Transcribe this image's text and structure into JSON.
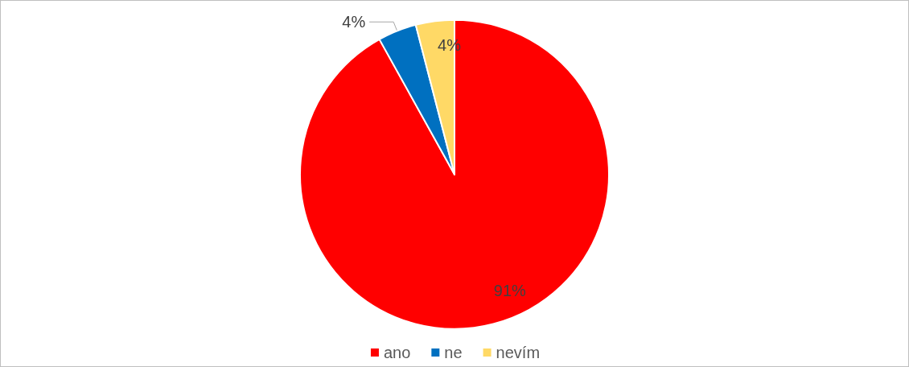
{
  "chart_data": {
    "type": "pie",
    "categories": [
      "ano",
      "ne",
      "nevím"
    ],
    "values": [
      91,
      4,
      4
    ],
    "colors": [
      "#ff0000",
      "#0070c0",
      "#ffd966"
    ],
    "value_labels": [
      "91%",
      "4%",
      "4%"
    ],
    "legend": "bottom"
  }
}
